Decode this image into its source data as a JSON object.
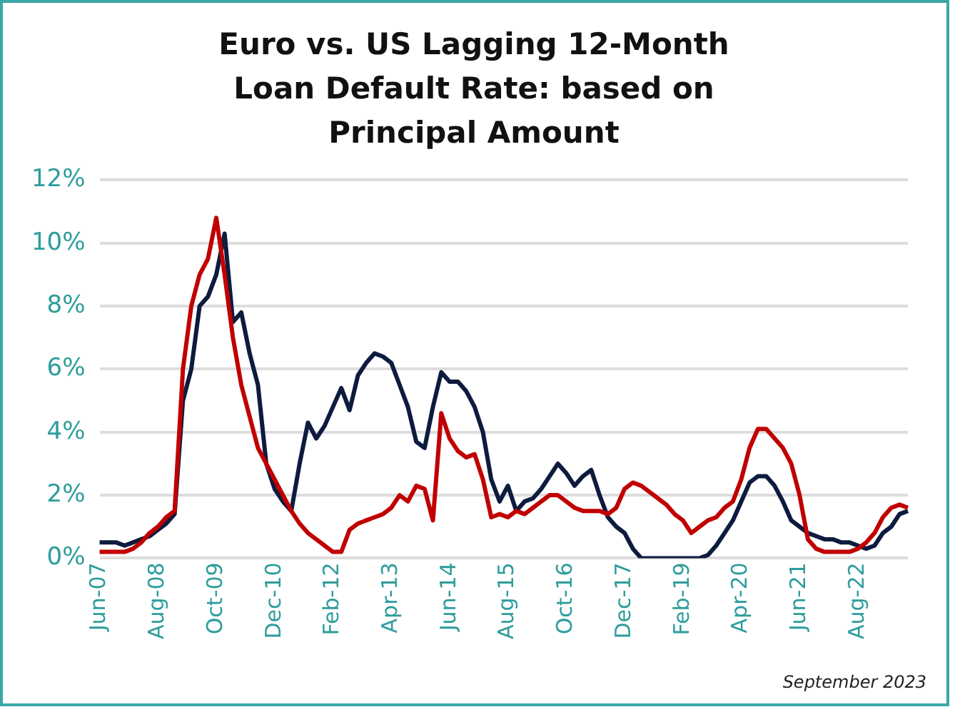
{
  "chart_data": {
    "type": "line",
    "title": "Euro vs. US Lagging 12-Month Loan Default Rate: based on Principal Amount",
    "annotations": [
      "September 2023"
    ],
    "categories": [
      "Jun-07",
      null,
      null,
      null,
      null,
      null,
      null,
      "Aug-08",
      null,
      null,
      null,
      null,
      null,
      null,
      "Oct-09",
      null,
      null,
      null,
      null,
      null,
      null,
      "Dec-10",
      null,
      null,
      null,
      null,
      null,
      null,
      "Feb-12",
      null,
      null,
      null,
      null,
      null,
      null,
      "Apr-13",
      null,
      null,
      null,
      null,
      null,
      null,
      "Jun-14",
      null,
      null,
      null,
      null,
      null,
      null,
      "Aug-15",
      null,
      null,
      null,
      null,
      null,
      null,
      "Oct-16",
      null,
      null,
      null,
      null,
      null,
      null,
      "Dec-17",
      null,
      null,
      null,
      null,
      null,
      null,
      "Feb-19",
      null,
      null,
      null,
      null,
      null,
      null,
      "Apr-20",
      null,
      null,
      null,
      null,
      null,
      null,
      "Jun-21",
      null,
      null,
      null,
      null,
      null,
      null,
      "Aug-22",
      null,
      null,
      null,
      null,
      null,
      null
    ],
    "series": [
      {
        "color": "#c00000",
        "values": [
          0.2,
          0.2,
          0.2,
          0.2,
          0.3,
          0.5,
          0.8,
          1.0,
          1.3,
          1.5,
          6.0,
          8.0,
          9.0,
          9.5,
          10.8,
          9.0,
          7.0,
          5.5,
          4.5,
          3.5,
          3.0,
          2.5,
          2.0,
          1.5,
          1.1,
          0.8,
          0.6,
          0.4,
          0.2,
          0.2,
          0.9,
          1.1,
          1.2,
          1.3,
          1.4,
          1.6,
          2.0,
          1.8,
          2.3,
          2.2,
          1.2,
          4.6,
          3.8,
          3.4,
          3.2,
          3.3,
          2.5,
          1.3,
          1.4,
          1.3,
          1.5,
          1.4,
          1.6,
          1.8,
          2.0,
          2.0,
          1.8,
          1.6,
          1.5,
          1.5,
          1.5,
          1.4,
          1.6,
          2.2,
          2.4,
          2.3,
          2.1,
          1.9,
          1.7,
          1.4,
          1.2,
          0.8,
          1.0,
          1.2,
          1.3,
          1.6,
          1.8,
          2.5,
          3.5,
          4.1,
          4.1,
          3.8,
          3.5,
          3.0,
          2.0,
          0.6,
          0.3,
          0.2,
          0.2,
          0.2,
          0.2,
          0.3,
          0.5,
          0.8,
          1.3,
          1.6,
          1.7,
          1.6
        ]
      },
      {
        "color": "#0d1b3e",
        "values": [
          0.5,
          0.5,
          0.5,
          0.4,
          0.5,
          0.6,
          0.7,
          0.9,
          1.1,
          1.4,
          5.0,
          6.0,
          8.0,
          8.3,
          9.0,
          10.3,
          7.5,
          7.8,
          6.5,
          5.5,
          3.0,
          2.2,
          1.8,
          1.5,
          3.0,
          4.3,
          3.8,
          4.2,
          4.8,
          5.4,
          4.7,
          5.8,
          6.2,
          6.5,
          6.4,
          6.2,
          5.5,
          4.8,
          3.7,
          3.5,
          4.8,
          5.9,
          5.6,
          5.6,
          5.3,
          4.8,
          4.0,
          2.5,
          1.8,
          2.3,
          1.5,
          1.8,
          1.9,
          2.2,
          2.6,
          3.0,
          2.7,
          2.3,
          2.6,
          2.8,
          2.0,
          1.3,
          1.0,
          0.8,
          0.3,
          0.0,
          0.0,
          0.0,
          0.0,
          0.0,
          0.0,
          0.0,
          0.0,
          0.1,
          0.4,
          0.8,
          1.2,
          1.8,
          2.4,
          2.6,
          2.6,
          2.3,
          1.8,
          1.2,
          1.0,
          0.8,
          0.7,
          0.6,
          0.6,
          0.5,
          0.5,
          0.4,
          0.3,
          0.4,
          0.8,
          1.0,
          1.4,
          1.5
        ]
      }
    ],
    "ylim": [
      0,
      12
    ],
    "yticks": [
      {
        "value": 0,
        "label": "0%"
      },
      {
        "value": 2,
        "label": "2%"
      },
      {
        "value": 4,
        "label": "4%"
      },
      {
        "value": 6,
        "label": "6%"
      },
      {
        "value": 8,
        "label": "8%"
      },
      {
        "value": 10,
        "label": "10%"
      },
      {
        "value": 12,
        "label": "12%"
      }
    ],
    "grid": "y"
  }
}
